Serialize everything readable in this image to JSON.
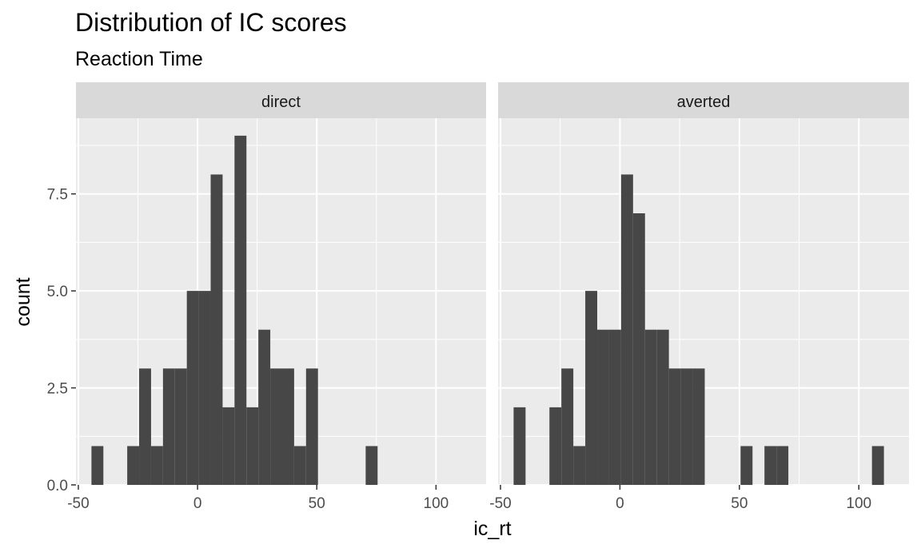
{
  "chart_data": {
    "type": "bar",
    "title": "Distribution of IC scores",
    "subtitle": "Reaction Time",
    "xlabel": "ic_rt",
    "ylabel": "count",
    "binwidth": 5,
    "xlim": [
      -51,
      121
    ],
    "ylim": [
      0,
      9.45
    ],
    "x_ticks": [
      -50,
      0,
      50,
      100
    ],
    "x_tick_labels": [
      "-50",
      "0",
      "50",
      "100"
    ],
    "y_ticks": [
      0,
      2.5,
      5,
      7.5
    ],
    "y_tick_labels": [
      "0.0",
      "2.5",
      "5.0",
      "7.5"
    ],
    "grid": true,
    "panels": [
      {
        "name": "direct",
        "bins": [
          {
            "start": -44.5,
            "count": 1
          },
          {
            "start": -29.5,
            "count": 1
          },
          {
            "start": -24.5,
            "count": 3
          },
          {
            "start": -19.5,
            "count": 1
          },
          {
            "start": -14.5,
            "count": 3
          },
          {
            "start": -9.5,
            "count": 3
          },
          {
            "start": -4.5,
            "count": 5
          },
          {
            "start": 0.5,
            "count": 5
          },
          {
            "start": 5.5,
            "count": 8
          },
          {
            "start": 10.5,
            "count": 2
          },
          {
            "start": 15.5,
            "count": 9
          },
          {
            "start": 20.5,
            "count": 2
          },
          {
            "start": 25.5,
            "count": 4
          },
          {
            "start": 30.5,
            "count": 3
          },
          {
            "start": 35.5,
            "count": 3
          },
          {
            "start": 40.5,
            "count": 1
          },
          {
            "start": 45.5,
            "count": 3
          },
          {
            "start": 70.5,
            "count": 1
          }
        ]
      },
      {
        "name": "averted",
        "bins": [
          {
            "start": -44.5,
            "count": 2
          },
          {
            "start": -29.5,
            "count": 2
          },
          {
            "start": -24.5,
            "count": 3
          },
          {
            "start": -19.5,
            "count": 1
          },
          {
            "start": -14.5,
            "count": 5
          },
          {
            "start": -9.5,
            "count": 4
          },
          {
            "start": -4.5,
            "count": 4
          },
          {
            "start": 0.5,
            "count": 8
          },
          {
            "start": 5.5,
            "count": 7
          },
          {
            "start": 10.5,
            "count": 4
          },
          {
            "start": 15.5,
            "count": 4
          },
          {
            "start": 20.5,
            "count": 3
          },
          {
            "start": 25.5,
            "count": 3
          },
          {
            "start": 30.5,
            "count": 3
          },
          {
            "start": 50.5,
            "count": 1
          },
          {
            "start": 60.5,
            "count": 1
          },
          {
            "start": 65.5,
            "count": 1
          },
          {
            "start": 105.5,
            "count": 1
          }
        ]
      }
    ]
  },
  "colors": {
    "bar": "#474747",
    "panel_background": "#ebebeb",
    "strip_background": "#d9d9d9",
    "grid": "#ffffff",
    "tick_text": "#4d4d4d",
    "strip_text": "#1a1a1a"
  }
}
